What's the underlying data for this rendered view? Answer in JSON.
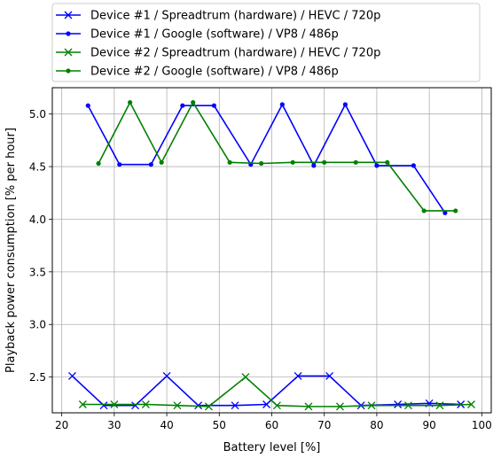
{
  "chart_data": {
    "type": "line",
    "xlabel": "Battery level [%]",
    "ylabel": "Playback power consumption [% per hour]",
    "xlim": [
      18.2,
      101.8
    ],
    "ylim": [
      2.16,
      5.25
    ],
    "xticks": [
      20,
      30,
      40,
      50,
      60,
      70,
      80,
      90,
      100
    ],
    "yticks": [
      2.5,
      3.0,
      3.5,
      4.0,
      4.5,
      5.0
    ],
    "xtick_labels": [
      "20",
      "30",
      "40",
      "50",
      "60",
      "70",
      "80",
      "90",
      "100"
    ],
    "ytick_labels": [
      "2.5",
      "3.0",
      "3.5",
      "4.0",
      "4.5",
      "5.0"
    ],
    "grid": true,
    "legend_position": "top (above plot)",
    "series": [
      {
        "name": "Device #1 / Spreadtrum (hardware) / HEVC / 720p",
        "color": "#0000ff",
        "marker": "x",
        "x": [
          22,
          28,
          34,
          40,
          46,
          53,
          59,
          65,
          71,
          77,
          84,
          90,
          96
        ],
        "y": [
          2.51,
          2.23,
          2.23,
          2.51,
          2.23,
          2.23,
          2.24,
          2.51,
          2.51,
          2.23,
          2.24,
          2.25,
          2.24
        ]
      },
      {
        "name": "Device #1 / Google (software) / VP8 / 486p",
        "color": "#0000ff",
        "marker": "dot",
        "x": [
          25,
          31,
          37,
          43,
          49,
          56,
          62,
          68,
          74,
          80,
          87,
          93
        ],
        "y": [
          5.08,
          4.52,
          4.52,
          5.08,
          5.08,
          4.52,
          5.09,
          4.51,
          5.09,
          4.51,
          4.51,
          4.06
        ]
      },
      {
        "name": "Device #2 / Spreadtrum (hardware) / HEVC / 720p",
        "color": "#008000",
        "marker": "x",
        "x": [
          24,
          30,
          36,
          42,
          48,
          55,
          61,
          67,
          73,
          79,
          86,
          92,
          98
        ],
        "y": [
          2.24,
          2.24,
          2.24,
          2.23,
          2.22,
          2.5,
          2.23,
          2.22,
          2.22,
          2.23,
          2.23,
          2.23,
          2.24
        ]
      },
      {
        "name": "Device #2 / Google (software) / VP8 / 486p",
        "color": "#008000",
        "marker": "dot",
        "x": [
          27,
          33,
          39,
          45,
          52,
          58,
          64,
          70,
          76,
          82,
          89,
          95
        ],
        "y": [
          4.53,
          5.11,
          4.54,
          5.11,
          4.54,
          4.53,
          4.54,
          4.54,
          4.54,
          4.54,
          4.08,
          4.08
        ]
      }
    ]
  }
}
